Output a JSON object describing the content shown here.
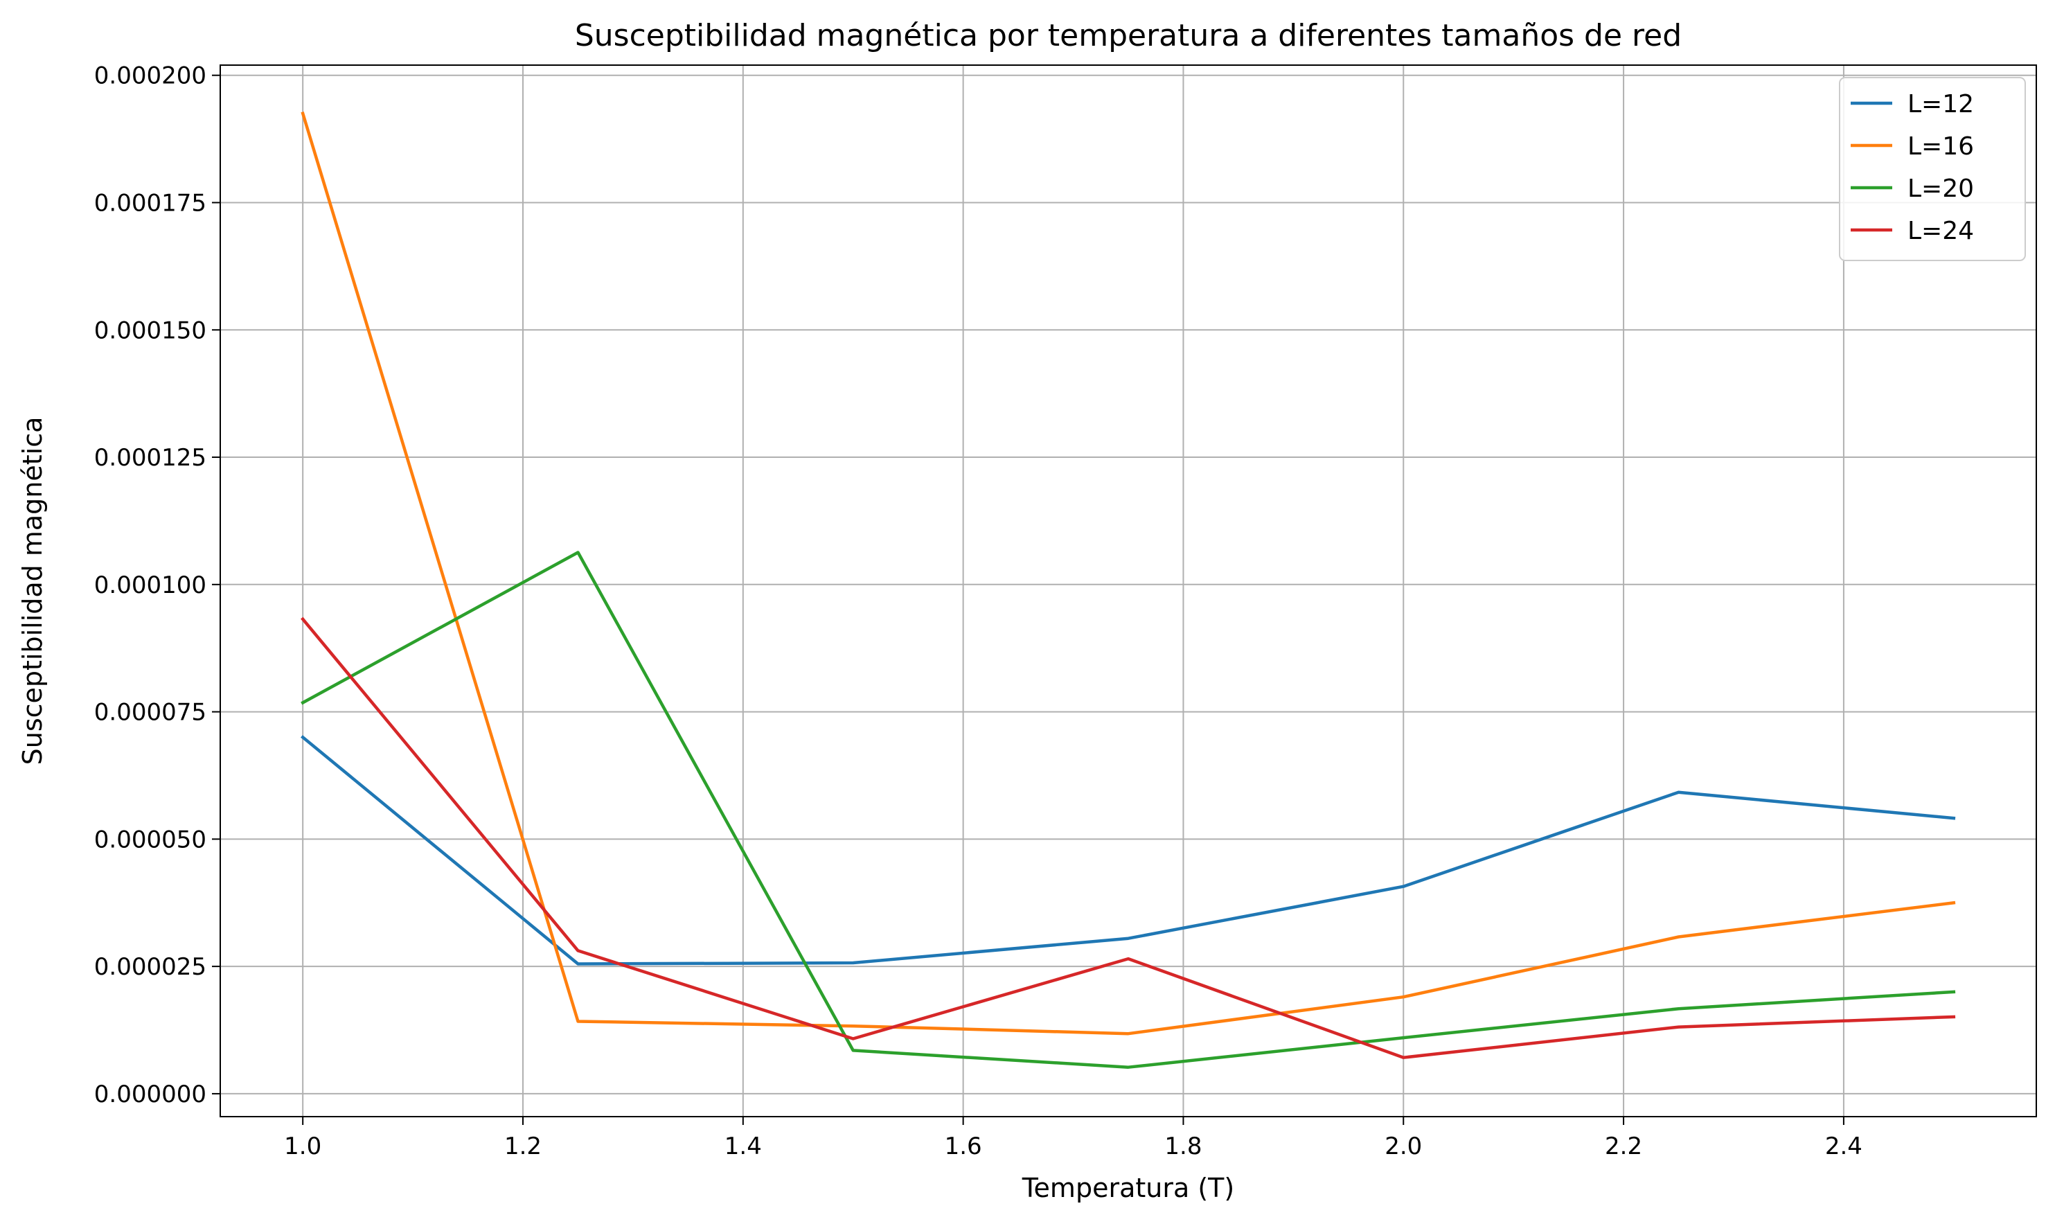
{
  "chart_data": {
    "type": "line",
    "title": "Susceptibilidad magnética por temperatura a diferentes tamaños de red",
    "xlabel": "Temperatura (T)",
    "ylabel": "Susceptibilidad magnética",
    "x": [
      1.0,
      1.25,
      1.5,
      1.75,
      2.0,
      2.25,
      2.5
    ],
    "xlim": [
      0.925,
      2.575
    ],
    "ylim": [
      -4.5e-06,
      0.000202
    ],
    "xticks": [
      1.0,
      1.2,
      1.4,
      1.6,
      1.8,
      2.0,
      2.2,
      2.4
    ],
    "xtick_labels": [
      "1.0",
      "1.2",
      "1.4",
      "1.6",
      "1.8",
      "2.0",
      "2.2",
      "2.4"
    ],
    "yticks": [
      0,
      2.5e-05,
      5e-05,
      7.5e-05,
      0.0001,
      0.000125,
      0.00015,
      0.000175,
      0.0002
    ],
    "ytick_labels": [
      "0.000000",
      "0.000025",
      "0.000050",
      "0.000075",
      "0.000100",
      "0.000125",
      "0.000150",
      "0.000175",
      "0.000200"
    ],
    "grid": true,
    "legend_position": "top-right",
    "series": [
      {
        "name": "L=12",
        "color": "#1f77b4",
        "values": [
          7e-05,
          2.55e-05,
          2.57e-05,
          3.05e-05,
          4.07e-05,
          5.92e-05,
          5.41e-05
        ]
      },
      {
        "name": "L=16",
        "color": "#ff7f0e",
        "values": [
          0.0001925,
          1.42e-05,
          1.33e-05,
          1.18e-05,
          1.9e-05,
          3.08e-05,
          3.75e-05
        ]
      },
      {
        "name": "L=20",
        "color": "#2ca02c",
        "values": [
          7.68e-05,
          0.0001063,
          8.5e-06,
          5.2e-06,
          1.1e-05,
          1.67e-05,
          2e-05
        ]
      },
      {
        "name": "L=24",
        "color": "#d62728",
        "values": [
          9.32e-05,
          2.81e-05,
          1.08e-05,
          2.65e-05,
          7.1e-06,
          1.31e-05,
          1.51e-05
        ]
      }
    ]
  }
}
